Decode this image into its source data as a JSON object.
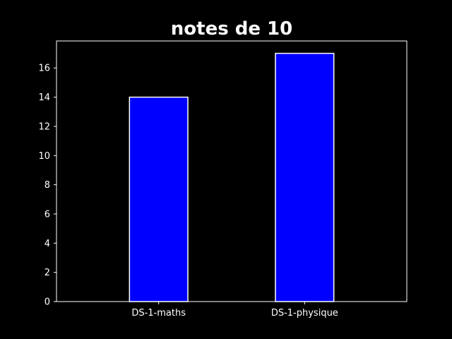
{
  "chart_data": {
    "type": "bar",
    "title": "notes de 10",
    "xlabel": "",
    "ylabel": "",
    "categories": [
      "DS-1-maths",
      "DS-1-physique"
    ],
    "values": [
      14,
      17
    ],
    "ylim": [
      0,
      17.85
    ],
    "yticks": [
      0,
      2,
      4,
      6,
      8,
      10,
      12,
      14,
      16
    ],
    "grid": false,
    "legend": "none",
    "colors": {
      "background": "#000000",
      "bar_fill": "#0000ff",
      "bar_edge": "#ffffff",
      "axes": "#ffffff",
      "text": "#ffffff"
    }
  }
}
